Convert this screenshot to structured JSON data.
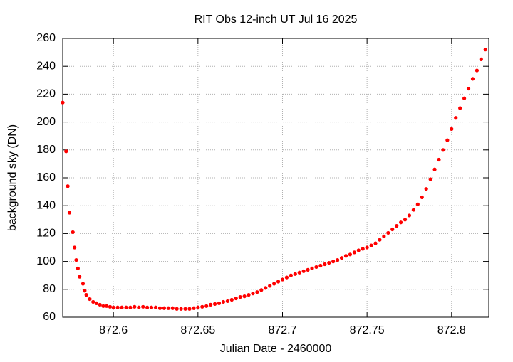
{
  "chart_data": {
    "type": "scatter",
    "title": "RIT Obs 12-inch UT Jul 16 2025",
    "x_label": "Julian Date - 2460000",
    "y_label": "background sky (DN)",
    "color": "#ff0000",
    "grid": true,
    "xlim": [
      872.57,
      872.822
    ],
    "ylim": [
      60,
      260
    ],
    "xticks": [
      872.6,
      872.65,
      872.7,
      872.75,
      872.8
    ],
    "yticks": [
      60,
      80,
      100,
      120,
      140,
      160,
      180,
      200,
      220,
      240,
      260
    ],
    "x": [
      872.57,
      872.572,
      872.573,
      872.574,
      872.576,
      872.577,
      872.578,
      872.579,
      872.58,
      872.582,
      872.583,
      872.584,
      872.586,
      872.588,
      872.59,
      872.592,
      872.594,
      872.596,
      872.598,
      872.6,
      872.6025,
      872.605,
      872.6075,
      872.61,
      872.6125,
      872.615,
      872.6175,
      872.62,
      872.6225,
      872.625,
      872.6275,
      872.63,
      872.6325,
      872.635,
      872.6375,
      872.64,
      872.6425,
      872.645,
      872.6475,
      872.65,
      872.6525,
      872.655,
      872.6575,
      872.66,
      872.6625,
      872.665,
      872.6675,
      872.67,
      872.6725,
      872.675,
      872.6775,
      872.68,
      872.6825,
      872.685,
      872.6875,
      872.69,
      872.6925,
      872.695,
      872.6975,
      872.7,
      872.7025,
      872.705,
      872.7075,
      872.71,
      872.7125,
      872.715,
      872.7175,
      872.72,
      872.7225,
      872.725,
      872.7275,
      872.73,
      872.7325,
      872.735,
      872.7375,
      872.74,
      872.7425,
      872.745,
      872.7475,
      872.75,
      872.7525,
      872.755,
      872.7575,
      872.76,
      872.7625,
      872.765,
      872.7675,
      872.77,
      872.7725,
      872.775,
      872.7775,
      872.78,
      872.7825,
      872.785,
      872.7875,
      872.79,
      872.7925,
      872.795,
      872.7975,
      872.8,
      872.8025,
      872.805,
      872.8075,
      872.81,
      872.8125,
      872.815,
      872.8175,
      872.82
    ],
    "values": [
      214,
      179,
      154,
      135,
      121,
      110,
      101,
      95,
      89,
      84,
      79,
      76,
      73,
      71,
      70,
      69,
      68,
      68,
      67.5,
      67,
      67,
      67,
      67,
      67,
      67.5,
      67,
      67.5,
      67,
      67,
      67,
      66.5,
      66.5,
      66.5,
      66.5,
      66,
      66,
      66,
      66,
      66.5,
      67,
      67.5,
      68,
      69,
      69.5,
      70,
      71,
      71.5,
      72.5,
      73.5,
      74.5,
      75,
      76,
      77,
      78,
      79.5,
      81,
      82.5,
      84,
      85.5,
      87,
      88.5,
      90,
      91,
      92,
      93,
      94,
      95,
      96,
      97,
      98,
      99,
      100,
      101,
      102.5,
      104,
      105,
      106.5,
      108,
      109,
      110,
      111.5,
      113,
      115.5,
      118,
      120.5,
      123,
      125.5,
      128,
      130,
      133,
      137,
      141,
      146,
      152,
      159,
      166,
      173,
      180,
      187,
      195,
      203,
      210,
      217,
      224,
      231,
      237,
      245,
      252
    ]
  }
}
